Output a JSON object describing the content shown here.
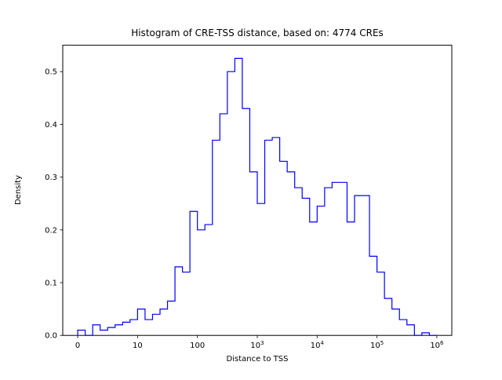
{
  "figure": {
    "background": "#ffffff",
    "line_color": "#0000ff",
    "axis_color": "#000000"
  },
  "chart_data": {
    "type": "bar",
    "subtype": "histogram-step",
    "title": "Histogram of CRE-TSS distance, based on: 4774 CREs",
    "xlabel": "Distance to TSS",
    "ylabel": "Density",
    "x_scale": "symlog",
    "legend": "none",
    "grid": false,
    "xlim_u": [
      -0.25,
      6.25
    ],
    "ylim": [
      0,
      0.55
    ],
    "x_ticks": [
      {
        "u": 0,
        "value": 0,
        "label": "0"
      },
      {
        "u": 1,
        "value": 10,
        "label": "10"
      },
      {
        "u": 2,
        "value": 100,
        "label": "100"
      },
      {
        "u": 3,
        "value": 1000,
        "label": "10^3"
      },
      {
        "u": 4,
        "value": 10000,
        "label": "10^4"
      },
      {
        "u": 5,
        "value": 100000,
        "label": "10^5"
      },
      {
        "u": 6,
        "value": 1000000,
        "label": "10^6"
      }
    ],
    "y_ticks": [
      0.0,
      0.1,
      0.2,
      0.3,
      0.4,
      0.5
    ],
    "bin_edges_log10": [
      0,
      0.125,
      0.25,
      0.375,
      0.5,
      0.625,
      0.75,
      0.875,
      1,
      1.125,
      1.25,
      1.375,
      1.5,
      1.625,
      1.75,
      1.875,
      2,
      2.125,
      2.25,
      2.375,
      2.5,
      2.625,
      2.75,
      2.875,
      3,
      3.125,
      3.25,
      3.375,
      3.5,
      3.625,
      3.75,
      3.875,
      4,
      4.125,
      4.25,
      4.375,
      4.5,
      4.625,
      4.75,
      4.875,
      5,
      5.125,
      5.25,
      5.375,
      5.5,
      5.625,
      5.75,
      5.875,
      6
    ],
    "densities": [
      0.01,
      0.0,
      0.02,
      0.01,
      0.015,
      0.02,
      0.025,
      0.03,
      0.05,
      0.03,
      0.04,
      0.05,
      0.065,
      0.13,
      0.12,
      0.235,
      0.2,
      0.21,
      0.37,
      0.42,
      0.5,
      0.525,
      0.43,
      0.31,
      0.25,
      0.37,
      0.375,
      0.33,
      0.31,
      0.28,
      0.26,
      0.215,
      0.245,
      0.28,
      0.29,
      0.29,
      0.215,
      0.265,
      0.265,
      0.15,
      0.12,
      0.07,
      0.05,
      0.03,
      0.02,
      0.0,
      0.005,
      0.0
    ]
  }
}
